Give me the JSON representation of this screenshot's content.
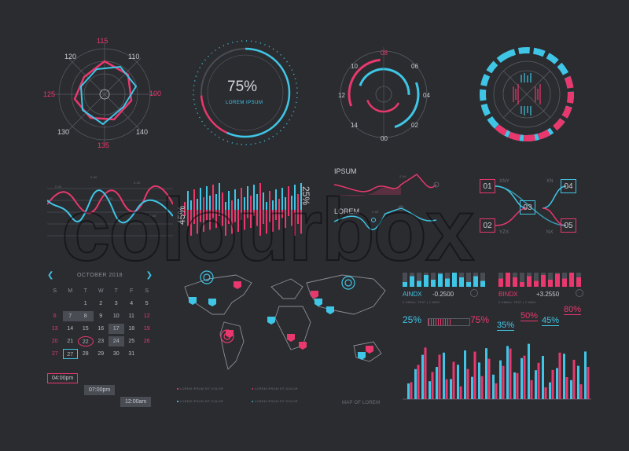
{
  "radar": {
    "labels": [
      "115",
      "110",
      "100",
      "140",
      "135",
      "130",
      "125",
      "120"
    ]
  },
  "gauge": {
    "value": "75%",
    "caption": "LOREM IPSUM"
  },
  "clock": {
    "labels": [
      "08",
      "06",
      "04",
      "02",
      "00",
      "14",
      "12",
      "10"
    ]
  },
  "wave": {
    "markers": [
      "0.00",
      "0.00",
      "0.00",
      "0.00",
      "0.00"
    ]
  },
  "bars": {
    "left_label": "45%",
    "right_label": "25%"
  },
  "lines": {
    "ipsum": "IPSUM",
    "lorem": "LOREM",
    "tags": [
      "2.54",
      "0.55"
    ]
  },
  "flow": {
    "nodes": [
      "01",
      "02",
      "03",
      "04",
      "05"
    ],
    "tags": [
      "XNY",
      "XN",
      "YZX",
      "NX"
    ]
  },
  "watermark": "colourbox",
  "calendar": {
    "month": "OCTOBER 2018",
    "weekdays": [
      "S",
      "M",
      "T",
      "W",
      "T",
      "F",
      "S"
    ],
    "rows": [
      [
        "",
        "1",
        "2",
        "3",
        "4",
        "5"
      ],
      [
        "6",
        "7",
        "8",
        "9",
        "10",
        "11",
        "12"
      ],
      [
        "13",
        "14",
        "15",
        "16",
        "17",
        "18",
        "19"
      ],
      [
        "20",
        "21",
        "22",
        "23",
        "24",
        "25",
        "26"
      ],
      [
        "27",
        "28",
        "29",
        "30",
        "31",
        "",
        ""
      ]
    ],
    "times": [
      "04:00pm",
      "07:00pm",
      "12:00am"
    ]
  },
  "map": {
    "caption": "MAP OF LOREM",
    "legend": [
      "LOREM IPSUM SIT DOLOR",
      "LOREM IPSUM SIT DOLOR",
      "LOREM IPSUM SIT DOLOR",
      "LOREM IPSUM SIT DOLOR"
    ]
  },
  "indices": {
    "aindx": "AINDX",
    "aindx_value": "-0.2500",
    "bindx": "BINDX",
    "bindx_value": "+3.2550",
    "subtext": "0 SMALL TEXT | 1 MNO"
  },
  "progress": {
    "left": "25%",
    "right": "75%",
    "value": 0.55
  },
  "percents": [
    "35%",
    "50%",
    "45%",
    "80%"
  ],
  "colors": {
    "pink": "#e8386d",
    "cyan": "#3fc6e6",
    "bg": "#2b2c30"
  }
}
